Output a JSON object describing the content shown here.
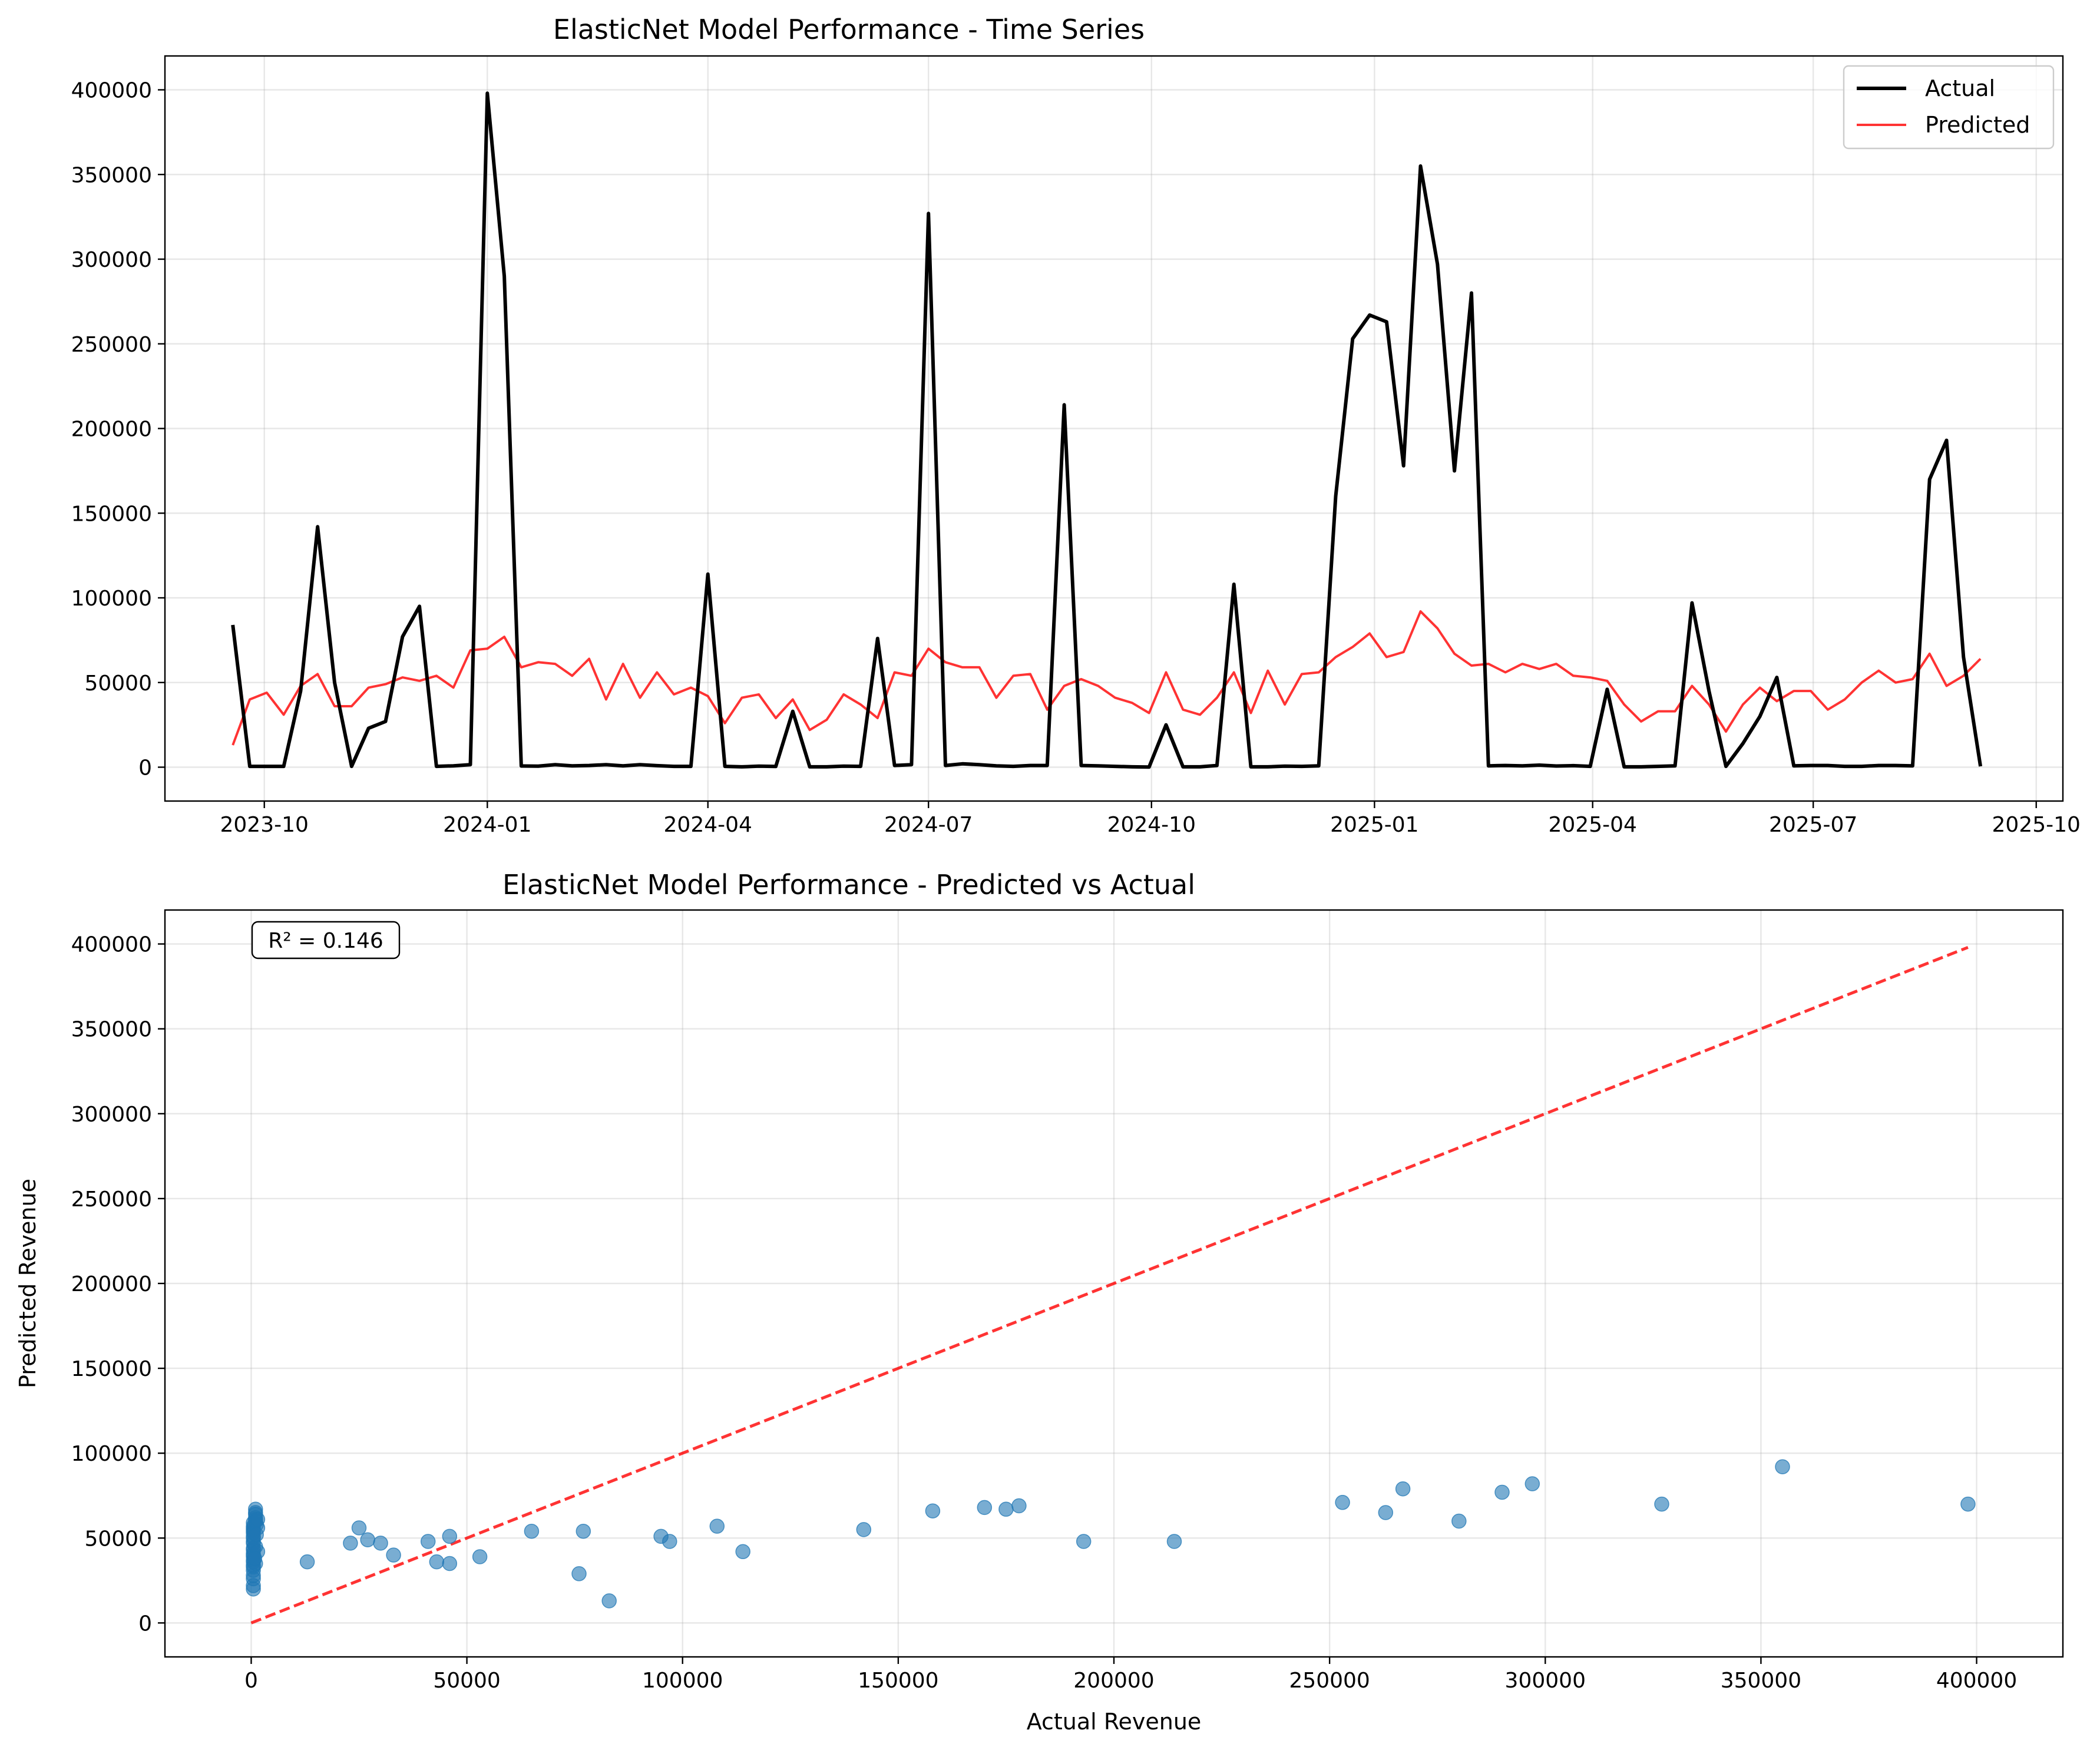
{
  "chart_data": [
    {
      "type": "line",
      "title": "ElasticNet Model Performance - Time Series",
      "xlabel": "",
      "ylabel": "",
      "x_range": [
        "2023-08-21",
        "2025-10-12"
      ],
      "ylim": [
        -20000,
        420000
      ],
      "x_ticks": [
        "2023-10-01",
        "2024-01-01",
        "2024-04-01",
        "2024-07-01",
        "2024-10-01",
        "2025-01-01",
        "2025-04-01",
        "2025-07-01",
        "2025-10-01"
      ],
      "x_tick_labels": [
        "2023-10",
        "2024-01",
        "2024-04",
        "2024-07",
        "2024-10",
        "2025-01",
        "2025-04",
        "2025-07",
        "2025-10"
      ],
      "y_ticks": [
        0,
        50000,
        100000,
        150000,
        200000,
        250000,
        300000,
        350000,
        400000
      ],
      "grid": true,
      "legend_position": "top-right",
      "start_date": "2023-09-18",
      "frequency": "weekly",
      "series": [
        {
          "name": "Actual",
          "color": "#000000",
          "values": [
            84000,
            500,
            500,
            500,
            45000,
            142000,
            50000,
            500,
            23000,
            27000,
            77000,
            95000,
            500,
            800,
            1500,
            398000,
            290000,
            700,
            600,
            1500,
            800,
            1000,
            1500,
            800,
            1500,
            900,
            500,
            500,
            114000,
            500,
            200,
            600,
            400,
            33000,
            200,
            200,
            600,
            500,
            76000,
            1000,
            1500,
            327000,
            1000,
            2000,
            1500,
            800,
            500,
            1000,
            1000,
            214000,
            1000,
            800,
            500,
            200,
            100,
            25000,
            200,
            200,
            1000,
            108000,
            200,
            200,
            600,
            500,
            800,
            160000,
            253000,
            267000,
            263000,
            178000,
            355000,
            297000,
            175000,
            280000,
            800,
            1000,
            800,
            1200,
            700,
            900,
            500,
            46000,
            200,
            200,
            500,
            800,
            97000,
            45000,
            500,
            14000,
            30000,
            53000,
            800,
            1000,
            1000,
            500,
            500,
            1000,
            1000,
            800,
            170000,
            193000,
            65000,
            500
          ]
        },
        {
          "name": "Predicted",
          "color": "#ff0000",
          "values": [
            13000,
            40000,
            44000,
            31000,
            48000,
            55000,
            36000,
            36000,
            47000,
            49000,
            53000,
            51000,
            54000,
            47000,
            69000,
            70000,
            77000,
            59000,
            62000,
            61000,
            54000,
            64000,
            40000,
            61000,
            41000,
            56000,
            43000,
            47000,
            42000,
            26000,
            41000,
            43000,
            29000,
            40000,
            22000,
            28000,
            43000,
            37000,
            29000,
            56000,
            54000,
            70000,
            62000,
            59000,
            59000,
            41000,
            54000,
            55000,
            34000,
            48000,
            52000,
            48000,
            41000,
            38000,
            32000,
            56000,
            34000,
            31000,
            41000,
            56000,
            32000,
            57000,
            37000,
            55000,
            56000,
            65000,
            71000,
            79000,
            65000,
            68000,
            92000,
            82000,
            67000,
            60000,
            61000,
            56000,
            61000,
            58000,
            61000,
            54000,
            53000,
            51000,
            37000,
            27000,
            33000,
            33000,
            48000,
            37000,
            21000,
            37000,
            47000,
            39000,
            45000,
            45000,
            34000,
            40000,
            50000,
            57000,
            50000,
            52000,
            67000,
            48000,
            54000,
            64000
          ]
        }
      ]
    },
    {
      "type": "scatter",
      "title": "ElasticNet Model Performance - Predicted vs Actual",
      "xlabel": "Actual Revenue",
      "ylabel": "Predicted Revenue",
      "xlim": [
        -20000,
        420000
      ],
      "ylim": [
        -20000,
        420000
      ],
      "x_ticks": [
        0,
        50000,
        100000,
        150000,
        200000,
        250000,
        300000,
        350000,
        400000
      ],
      "y_ticks": [
        0,
        50000,
        100000,
        150000,
        200000,
        250000,
        300000,
        350000,
        400000
      ],
      "grid": true,
      "annotation": "R² = 0.146",
      "point_color": "#1f77b4",
      "reference_line": {
        "x": [
          0,
          398000
        ],
        "y": [
          0,
          398000
        ],
        "color": "#ff0000",
        "style": "dashed"
      },
      "points": [
        [
          500,
          20000
        ],
        [
          500,
          22000
        ],
        [
          500,
          26000
        ],
        [
          500,
          28000
        ],
        [
          500,
          31000
        ],
        [
          500,
          33000
        ],
        [
          500,
          34000
        ],
        [
          500,
          36000
        ],
        [
          500,
          37000
        ],
        [
          500,
          39000
        ],
        [
          500,
          40000
        ],
        [
          500,
          41000
        ],
        [
          500,
          43000
        ],
        [
          500,
          44000
        ],
        [
          500,
          47000
        ],
        [
          500,
          48000
        ],
        [
          500,
          50000
        ],
        [
          500,
          51000
        ],
        [
          500,
          53000
        ],
        [
          500,
          54000
        ],
        [
          500,
          55000
        ],
        [
          500,
          56000
        ],
        [
          500,
          57000
        ],
        [
          500,
          59000
        ],
        [
          1000,
          60000
        ],
        [
          1000,
          61000
        ],
        [
          1000,
          62000
        ],
        [
          1000,
          64000
        ],
        [
          1000,
          65000
        ],
        [
          1000,
          67000
        ],
        [
          1200,
          58000
        ],
        [
          1000,
          45000
        ],
        [
          1500,
          42000
        ],
        [
          1000,
          35000
        ],
        [
          1500,
          56000
        ],
        [
          1500,
          61000
        ],
        [
          1200,
          52000
        ],
        [
          800,
          38000
        ],
        [
          13000,
          36000
        ],
        [
          23000,
          47000
        ],
        [
          25000,
          56000
        ],
        [
          27000,
          49000
        ],
        [
          30000,
          47000
        ],
        [
          33000,
          40000
        ],
        [
          41000,
          48000
        ],
        [
          43000,
          36000
        ],
        [
          46000,
          51000
        ],
        [
          46000,
          35000
        ],
        [
          53000,
          39000
        ],
        [
          65000,
          54000
        ],
        [
          76000,
          29000
        ],
        [
          77000,
          54000
        ],
        [
          83000,
          13000
        ],
        [
          95000,
          51000
        ],
        [
          97000,
          48000
        ],
        [
          108000,
          57000
        ],
        [
          114000,
          42000
        ],
        [
          142000,
          55000
        ],
        [
          158000,
          66000
        ],
        [
          170000,
          68000
        ],
        [
          175000,
          67000
        ],
        [
          178000,
          69000
        ],
        [
          193000,
          48000
        ],
        [
          214000,
          48000
        ],
        [
          253000,
          71000
        ],
        [
          263000,
          65000
        ],
        [
          267000,
          79000
        ],
        [
          280000,
          60000
        ],
        [
          290000,
          77000
        ],
        [
          297000,
          82000
        ],
        [
          327000,
          70000
        ],
        [
          355000,
          92000
        ],
        [
          398000,
          70000
        ]
      ]
    }
  ]
}
